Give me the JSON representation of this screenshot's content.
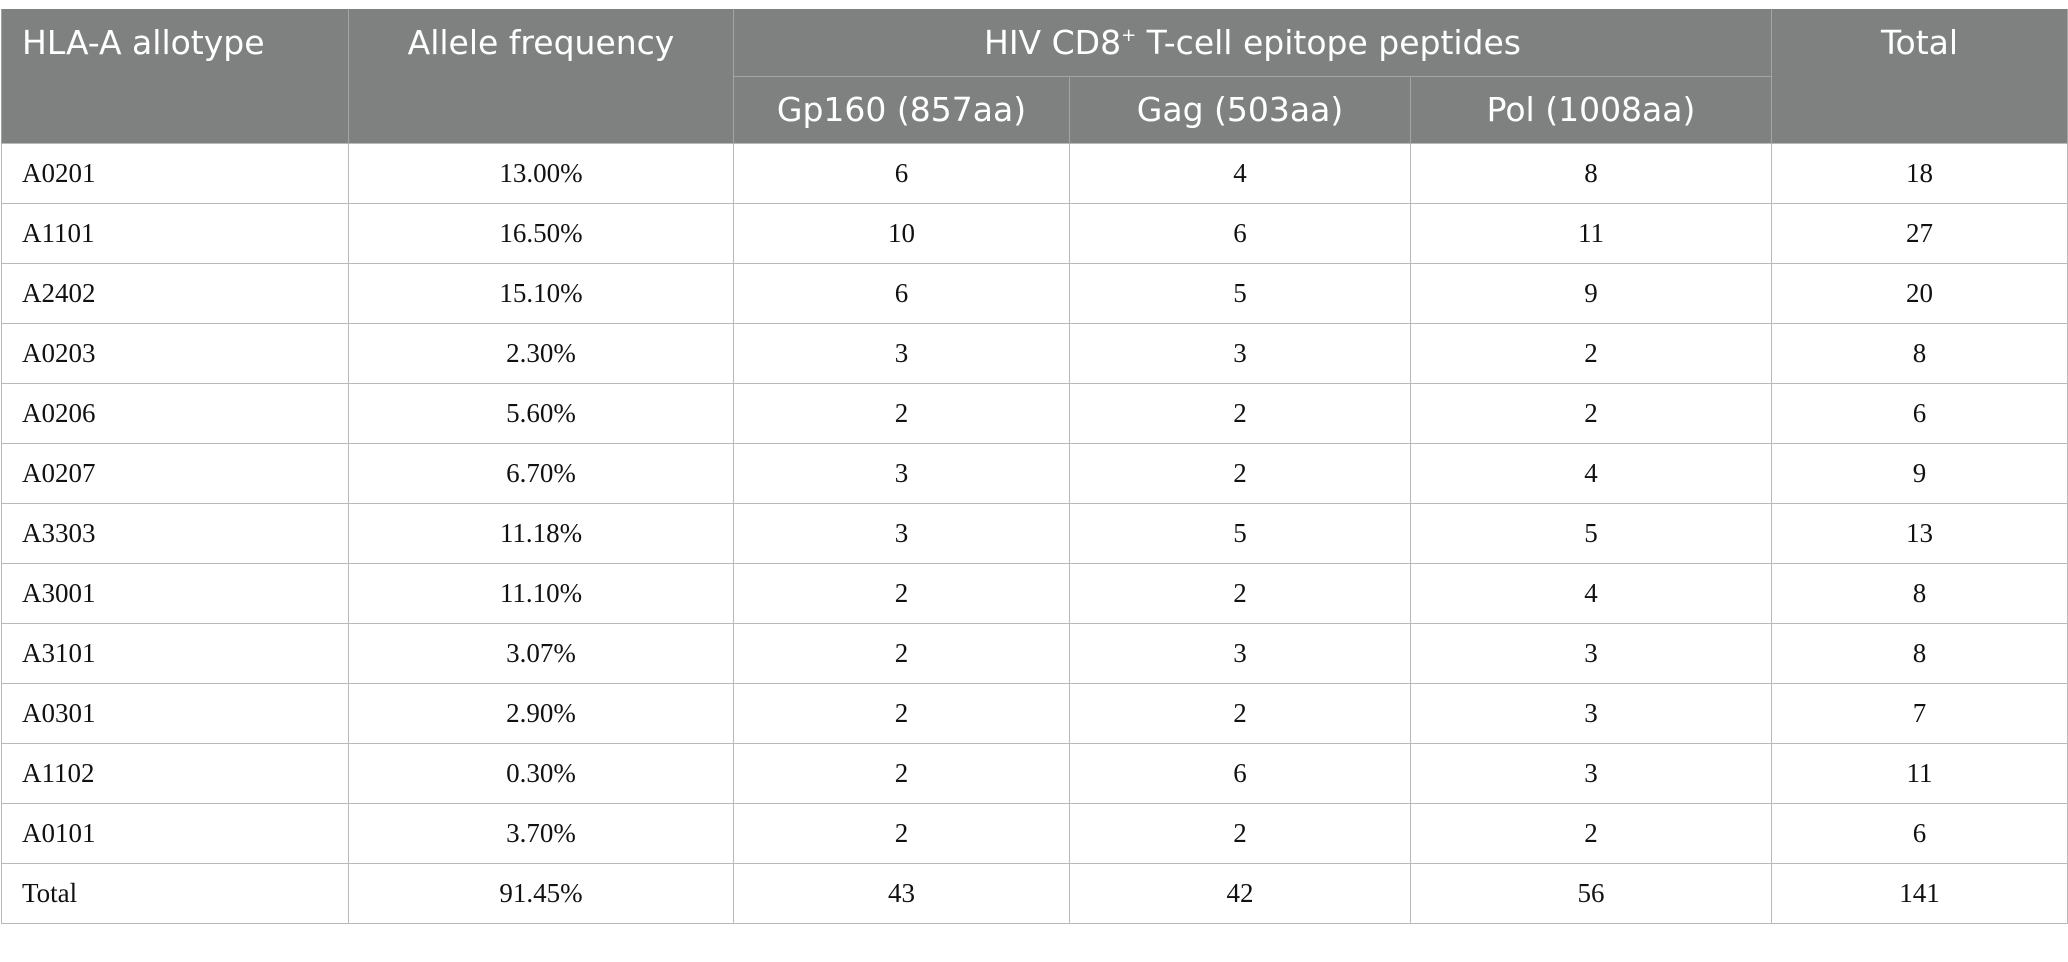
{
  "table": {
    "headers": {
      "allotype": "HLA-A allotype",
      "frequency": "Allele frequency",
      "group_prefix": "HIV CD8",
      "group_sup": "+",
      "group_suffix": " T-cell epitope peptides",
      "gp160": "Gp160 (857aa)",
      "gag": "Gag (503aa)",
      "pol": "Pol (1008aa)",
      "total": "Total"
    },
    "rows": [
      {
        "allotype": "A0201",
        "frequency": "13.00%",
        "gp160": "6",
        "gag": "4",
        "pol": "8",
        "total": "18"
      },
      {
        "allotype": "A1101",
        "frequency": "16.50%",
        "gp160": "10",
        "gag": "6",
        "pol": "11",
        "total": "27"
      },
      {
        "allotype": "A2402",
        "frequency": "15.10%",
        "gp160": "6",
        "gag": "5",
        "pol": "9",
        "total": "20"
      },
      {
        "allotype": "A0203",
        "frequency": "2.30%",
        "gp160": "3",
        "gag": "3",
        "pol": "2",
        "total": "8"
      },
      {
        "allotype": "A0206",
        "frequency": "5.60%",
        "gp160": "2",
        "gag": "2",
        "pol": "2",
        "total": "6"
      },
      {
        "allotype": "A0207",
        "frequency": "6.70%",
        "gp160": "3",
        "gag": "2",
        "pol": "4",
        "total": "9"
      },
      {
        "allotype": "A3303",
        "frequency": "11.18%",
        "gp160": "3",
        "gag": "5",
        "pol": "5",
        "total": "13"
      },
      {
        "allotype": "A3001",
        "frequency": "11.10%",
        "gp160": "2",
        "gag": "2",
        "pol": "4",
        "total": "8"
      },
      {
        "allotype": "A3101",
        "frequency": "3.07%",
        "gp160": "2",
        "gag": "3",
        "pol": "3",
        "total": "8"
      },
      {
        "allotype": "A0301",
        "frequency": "2.90%",
        "gp160": "2",
        "gag": "2",
        "pol": "3",
        "total": "7"
      },
      {
        "allotype": "A1102",
        "frequency": "0.30%",
        "gp160": "2",
        "gag": "6",
        "pol": "3",
        "total": "11"
      },
      {
        "allotype": "A0101",
        "frequency": "3.70%",
        "gp160": "2",
        "gag": "2",
        "pol": "2",
        "total": "6"
      },
      {
        "allotype": "Total",
        "frequency": "91.45%",
        "gp160": "43",
        "gag": "42",
        "pol": "56",
        "total": "141"
      }
    ]
  },
  "colors": {
    "header_background": "#7f8180",
    "header_text": "#ffffff",
    "grid_line": "#b9b9b9"
  }
}
